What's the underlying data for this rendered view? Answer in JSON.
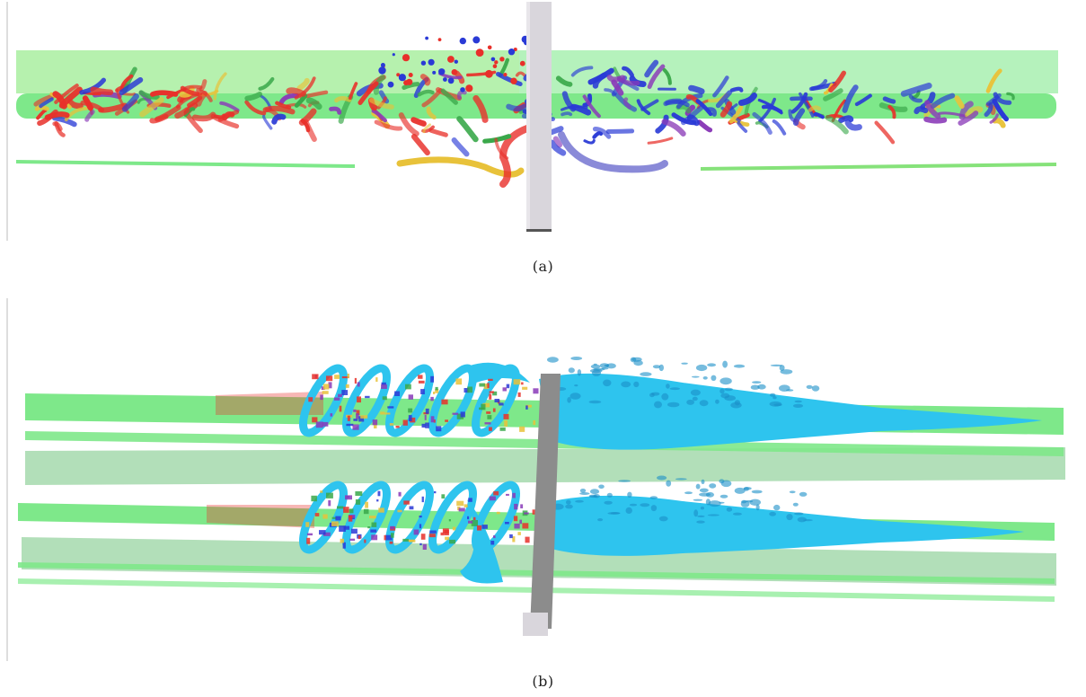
{
  "figure": {
    "panels": [
      {
        "id": "a",
        "caption": "(a)"
      },
      {
        "id": "b",
        "caption": "(b)"
      }
    ]
  },
  "colors": {
    "background": "#ffffff",
    "sheet_green": "#7ee88a",
    "sheet_light": "#a8f0b0",
    "band_pale": "#9fd7a8",
    "vortex_red": "#e8302a",
    "vortex_blue": "#2a3ad6",
    "vortex_purple": "#8a3ab8",
    "iso_cyan": "#2ec4ee",
    "iso_cyan_dark": "#1a8fc8",
    "tower_light": "#d9d6dc",
    "tower_dark": "#8c8c8c"
  }
}
